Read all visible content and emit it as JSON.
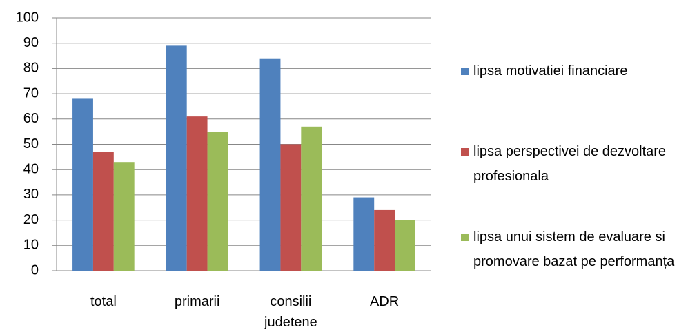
{
  "chart_data": {
    "type": "bar",
    "categories": [
      "total",
      "primarii",
      "consilii judetene",
      "ADR"
    ],
    "series": [
      {
        "name": "lipsa motivatiei financiare",
        "color": "#4f81bd",
        "values": [
          68,
          89,
          84,
          29
        ]
      },
      {
        "name": "lipsa perspectivei de dezvoltare profesionala",
        "color": "#c0504d",
        "values": [
          47,
          61,
          50,
          24
        ]
      },
      {
        "name": "lipsa unui sistem de evaluare si promovare bazat pe performanța",
        "color": "#9bbb59",
        "values": [
          43,
          55,
          57,
          20
        ]
      }
    ],
    "ylim": [
      0,
      100
    ],
    "yticks": [
      0,
      10,
      20,
      30,
      40,
      50,
      60,
      70,
      80,
      90,
      100
    ],
    "grid": true,
    "legend": "right"
  }
}
